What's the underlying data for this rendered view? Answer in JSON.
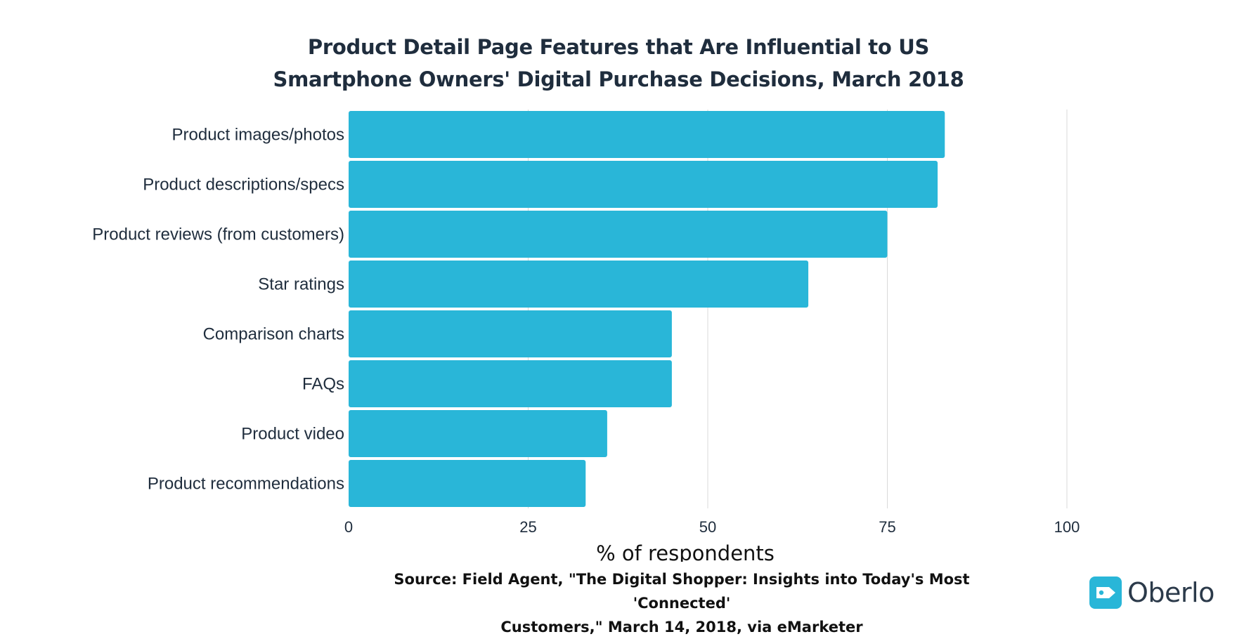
{
  "chart_data": {
    "type": "bar",
    "orientation": "horizontal",
    "title_lines": [
      "Product Detail Page Features that Are Influential to US",
      "Smartphone Owners' Digital Purchase Decisions, March 2018"
    ],
    "categories": [
      "Product images/photos",
      "Product descriptions/specs",
      "Product reviews (from customers)",
      "Star ratings",
      "Comparison charts",
      "FAQs",
      "Product video",
      "Product recommendations"
    ],
    "values": [
      83,
      82,
      75,
      64,
      45,
      45,
      36,
      33
    ],
    "xlabel": "% of respondents",
    "ylabel": "",
    "xlim": [
      0,
      100
    ],
    "xticks": [
      0,
      25,
      50,
      75,
      100
    ],
    "grid": true,
    "bar_color": "#29b6d8",
    "grid_color": "#d9d9d9"
  },
  "source": {
    "lines": [
      "Source:  Field Agent, \"The Digital Shopper: Insights into Today's Most 'Connected'",
      "Customers,\" March 14, 2018, via eMarketer"
    ]
  },
  "logo": {
    "name": "Oberlo",
    "color": "#29b6d8"
  }
}
